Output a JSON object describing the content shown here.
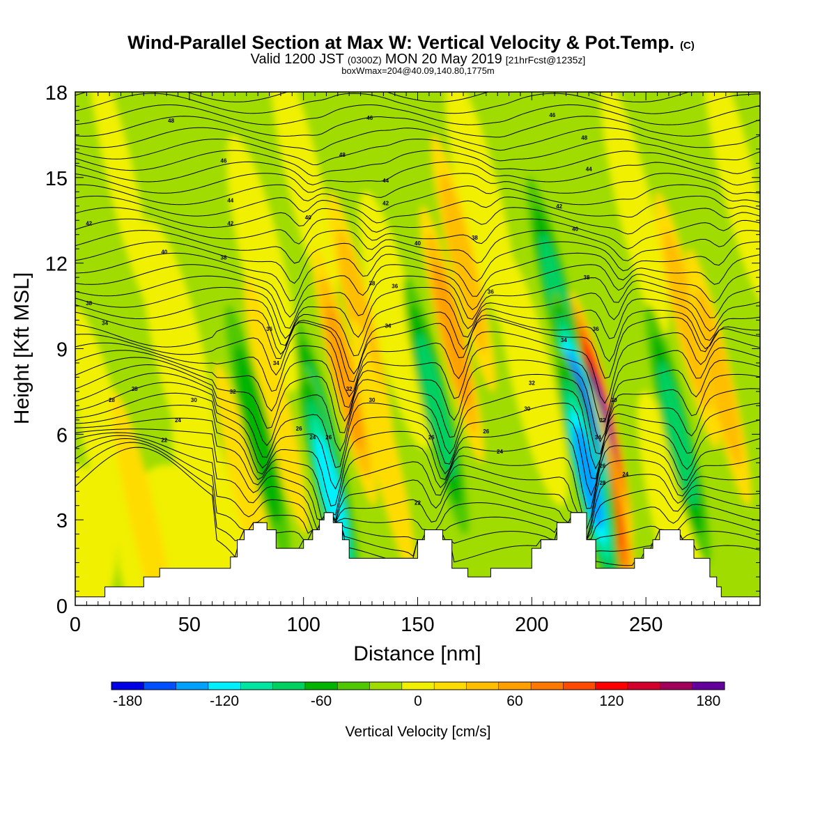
{
  "chart_data": {
    "type": "heatmap",
    "title": "Wind-Parallel Section at Max W: Vertical Velocity & Pot.Temp.",
    "title_mark": "(C)",
    "subtitle_main": "Valid 1200 JST",
    "subtitle_zulu": "(0300Z)",
    "subtitle_date": "MON 20 May 2019",
    "subtitle_fcst": "[21hrFcst@1235z]",
    "subtitle2": "boxWmax=204@40.09,140.80,1775m",
    "xlabel": "Distance [nm]",
    "ylabel": "Height [Kft MSL]",
    "xlim": [
      0,
      300
    ],
    "ylim": [
      0,
      18
    ],
    "xticks": [
      "0",
      "50",
      "100",
      "150",
      "200",
      "250"
    ],
    "yticks": [
      "0",
      "3",
      "6",
      "9",
      "12",
      "15",
      "18"
    ],
    "colorbar": {
      "label": "Vertical Velocity [cm/s]",
      "range": [
        -180,
        200
      ],
      "step": 20,
      "tick_labels": [
        "-180",
        "-120",
        "-60",
        "0",
        "60",
        "120",
        "180"
      ],
      "colors": [
        "#0000e6",
        "#0050ff",
        "#00a0ff",
        "#00f0ff",
        "#00e6a0",
        "#00d060",
        "#00b400",
        "#50c800",
        "#a0dc00",
        "#f0f000",
        "#ffdc00",
        "#ffbe00",
        "#ffa000",
        "#ff7800",
        "#ff4b00",
        "#ff0000",
        "#d2002d",
        "#a0005a",
        "#64009b"
      ]
    },
    "terrain_kft": [
      [
        0,
        0.3
      ],
      [
        13,
        0.3
      ],
      [
        13,
        0.65
      ],
      [
        30,
        0.65
      ],
      [
        30,
        1.0
      ],
      [
        37,
        1.0
      ],
      [
        37,
        1.3
      ],
      [
        68,
        1.3
      ],
      [
        68,
        1.7
      ],
      [
        71,
        1.7
      ],
      [
        71,
        2.3
      ],
      [
        74,
        2.3
      ],
      [
        74,
        2.65
      ],
      [
        78,
        2.65
      ],
      [
        78,
        2.9
      ],
      [
        84,
        2.9
      ],
      [
        84,
        2.65
      ],
      [
        88,
        2.65
      ],
      [
        88,
        2.0
      ],
      [
        100,
        2.0
      ],
      [
        100,
        2.3
      ],
      [
        104,
        2.3
      ],
      [
        104,
        2.65
      ],
      [
        107,
        2.65
      ],
      [
        107,
        3.0
      ],
      [
        109,
        3.0
      ],
      [
        109,
        3.25
      ],
      [
        113,
        3.25
      ],
      [
        113,
        2.9
      ],
      [
        117,
        2.9
      ],
      [
        117,
        2.3
      ],
      [
        120,
        2.3
      ],
      [
        120,
        1.65
      ],
      [
        150,
        1.65
      ],
      [
        150,
        2.3
      ],
      [
        153,
        2.3
      ],
      [
        153,
        2.65
      ],
      [
        161,
        2.65
      ],
      [
        161,
        2.3
      ],
      [
        165,
        2.3
      ],
      [
        165,
        1.3
      ],
      [
        172,
        1.3
      ],
      [
        172,
        1.0
      ],
      [
        182,
        1.0
      ],
      [
        182,
        1.3
      ],
      [
        200,
        1.3
      ],
      [
        200,
        2.0
      ],
      [
        204,
        2.0
      ],
      [
        204,
        2.3
      ],
      [
        211,
        2.3
      ],
      [
        211,
        2.9
      ],
      [
        217,
        2.9
      ],
      [
        217,
        3.25
      ],
      [
        224,
        3.25
      ],
      [
        224,
        2.3
      ],
      [
        228,
        2.3
      ],
      [
        228,
        1.3
      ],
      [
        245,
        1.3
      ],
      [
        245,
        1.65
      ],
      [
        249,
        1.65
      ],
      [
        249,
        2.0
      ],
      [
        253,
        2.0
      ],
      [
        253,
        2.3
      ],
      [
        256,
        2.3
      ],
      [
        256,
        2.65
      ],
      [
        265,
        2.65
      ],
      [
        265,
        2.3
      ],
      [
        271,
        2.3
      ],
      [
        271,
        1.65
      ],
      [
        278,
        1.65
      ],
      [
        278,
        1.0
      ],
      [
        281,
        1.0
      ],
      [
        281,
        0.65
      ],
      [
        283,
        0.65
      ],
      [
        283,
        0.3
      ],
      [
        300,
        0.3
      ]
    ],
    "updrafts": [
      {
        "x": 75,
        "z": 4.0,
        "w": 35
      },
      {
        "x": 88,
        "z": 7.0,
        "w": 35
      },
      {
        "x": 118,
        "z": 8.0,
        "w": 70
      },
      {
        "x": 125,
        "z": 10.0,
        "w": 55
      },
      {
        "x": 165,
        "z": 9.5,
        "w": 70
      },
      {
        "x": 170,
        "z": 12.0,
        "w": 50
      },
      {
        "x": 230,
        "z": 6.5,
        "w": 180
      },
      {
        "x": 233,
        "z": 4.0,
        "w": 110
      },
      {
        "x": 268,
        "z": 10.0,
        "w": 45
      },
      {
        "x": 282,
        "z": 8.0,
        "w": 45
      },
      {
        "x": 30,
        "z": 3.0,
        "w": 25
      },
      {
        "x": 135,
        "z": 5.5,
        "w": 25
      }
    ],
    "downdrafts": [
      {
        "x": 80,
        "z": 6.0,
        "w": -50
      },
      {
        "x": 110,
        "z": 5.5,
        "w": -95
      },
      {
        "x": 112,
        "z": 4.0,
        "w": -110
      },
      {
        "x": 158,
        "z": 7.0,
        "w": -65
      },
      {
        "x": 212,
        "z": 10.5,
        "w": -70
      },
      {
        "x": 223,
        "z": 6.5,
        "w": -160
      },
      {
        "x": 225,
        "z": 4.5,
        "w": -130
      },
      {
        "x": 264,
        "z": 6.0,
        "w": -60
      }
    ],
    "theta_labels": [
      {
        "x": 42,
        "z": 17.0,
        "text": "48"
      },
      {
        "x": 65,
        "z": 15.6,
        "text": "46"
      },
      {
        "x": 68,
        "z": 14.2,
        "text": "44"
      },
      {
        "x": 68,
        "z": 13.4,
        "text": "42"
      },
      {
        "x": 6,
        "z": 13.4,
        "text": "42"
      },
      {
        "x": 39,
        "z": 12.4,
        "text": "40"
      },
      {
        "x": 65,
        "z": 12.2,
        "text": "38"
      },
      {
        "x": 6,
        "z": 10.6,
        "text": "38"
      },
      {
        "x": 13,
        "z": 9.9,
        "text": "34"
      },
      {
        "x": 85,
        "z": 9.7,
        "text": "36"
      },
      {
        "x": 88,
        "z": 8.5,
        "text": "34"
      },
      {
        "x": 69,
        "z": 7.5,
        "text": "32"
      },
      {
        "x": 52,
        "z": 7.2,
        "text": "30"
      },
      {
        "x": 26,
        "z": 7.6,
        "text": "28"
      },
      {
        "x": 16,
        "z": 7.2,
        "text": "28"
      },
      {
        "x": 45,
        "z": 6.5,
        "text": "24"
      },
      {
        "x": 39,
        "z": 5.8,
        "text": "22"
      },
      {
        "x": 102,
        "z": 13.6,
        "text": "40"
      },
      {
        "x": 98,
        "z": 6.2,
        "text": "26"
      },
      {
        "x": 104,
        "z": 5.9,
        "text": "24"
      },
      {
        "x": 111,
        "z": 5.9,
        "text": "26"
      },
      {
        "x": 117,
        "z": 15.8,
        "text": "48"
      },
      {
        "x": 129,
        "z": 17.1,
        "text": "46"
      },
      {
        "x": 136,
        "z": 14.9,
        "text": "44"
      },
      {
        "x": 136,
        "z": 14.1,
        "text": "42"
      },
      {
        "x": 150,
        "z": 12.7,
        "text": "40"
      },
      {
        "x": 130,
        "z": 11.3,
        "text": "38"
      },
      {
        "x": 140,
        "z": 11.2,
        "text": "36"
      },
      {
        "x": 137,
        "z": 9.8,
        "text": "34"
      },
      {
        "x": 120,
        "z": 7.6,
        "text": "32"
      },
      {
        "x": 130,
        "z": 7.2,
        "text": "30"
      },
      {
        "x": 156,
        "z": 5.9,
        "text": "26"
      },
      {
        "x": 150,
        "z": 3.6,
        "text": "22"
      },
      {
        "x": 175,
        "z": 12.9,
        "text": "38"
      },
      {
        "x": 182,
        "z": 11.0,
        "text": "36"
      },
      {
        "x": 180,
        "z": 6.1,
        "text": "26"
      },
      {
        "x": 186,
        "z": 5.4,
        "text": "24"
      },
      {
        "x": 200,
        "z": 7.8,
        "text": "32"
      },
      {
        "x": 198,
        "z": 6.9,
        "text": "30"
      },
      {
        "x": 209,
        "z": 17.2,
        "text": "46"
      },
      {
        "x": 223,
        "z": 16.4,
        "text": "48"
      },
      {
        "x": 225,
        "z": 15.3,
        "text": "44"
      },
      {
        "x": 212,
        "z": 14.0,
        "text": "42"
      },
      {
        "x": 219,
        "z": 13.2,
        "text": "40"
      },
      {
        "x": 224,
        "z": 11.5,
        "text": "38"
      },
      {
        "x": 228,
        "z": 9.7,
        "text": "36"
      },
      {
        "x": 214,
        "z": 9.3,
        "text": "34"
      },
      {
        "x": 236,
        "z": 7.2,
        "text": "30"
      },
      {
        "x": 231,
        "z": 6.5,
        "text": "32"
      },
      {
        "x": 229,
        "z": 5.9,
        "text": "34"
      },
      {
        "x": 231,
        "z": 4.9,
        "text": "26"
      },
      {
        "x": 231,
        "z": 4.3,
        "text": "28"
      },
      {
        "x": 241,
        "z": 4.6,
        "text": "24"
      }
    ]
  }
}
